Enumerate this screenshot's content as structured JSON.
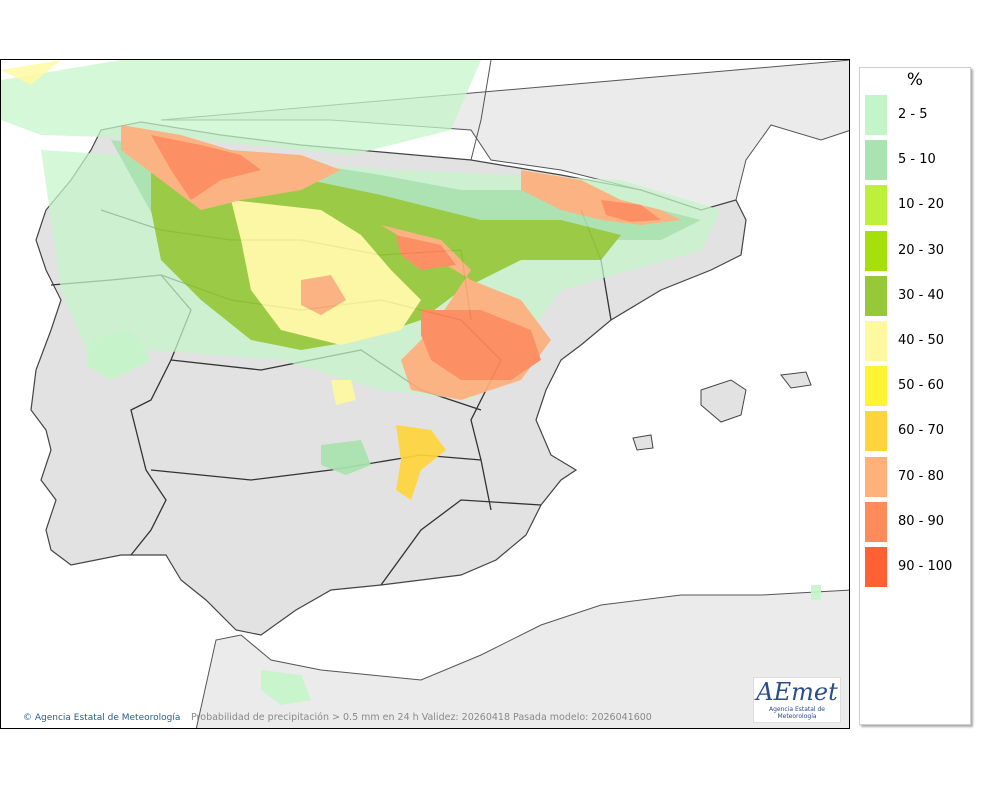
{
  "map": {
    "caption": "Probabilidad de precipitación > 0.5 mm en 24 h Validez: 20260418 Pasada modelo: 2026041600",
    "copyright": "Agencia Estatal de Meteorología",
    "land_color": "#ebebeb",
    "sea_color": "#ffffff",
    "border_color": "#333333",
    "logo": {
      "mark": "AEmet",
      "sub": "Agencia Estatal de Meteorología"
    }
  },
  "legend": {
    "unit": "%",
    "classes": [
      {
        "label": "2 - 5",
        "color": "#c4f5c9"
      },
      {
        "label": "5 - 10",
        "color": "#a9e3b0"
      },
      {
        "label": "10 - 20",
        "color": "#bdf03a"
      },
      {
        "label": "20 - 30",
        "color": "#a6e00c"
      },
      {
        "label": "30 - 40",
        "color": "#96c93a"
      },
      {
        "label": "40 - 50",
        "color": "#fef9a0"
      },
      {
        "label": "50 - 60",
        "color": "#fff433"
      },
      {
        "label": "60 - 70",
        "color": "#ffd43c"
      },
      {
        "label": "70 - 80",
        "color": "#ffb07b"
      },
      {
        "label": "80 - 90",
        "color": "#ff8a5a"
      },
      {
        "label": "90 - 100",
        "color": "#ff6133"
      }
    ]
  }
}
